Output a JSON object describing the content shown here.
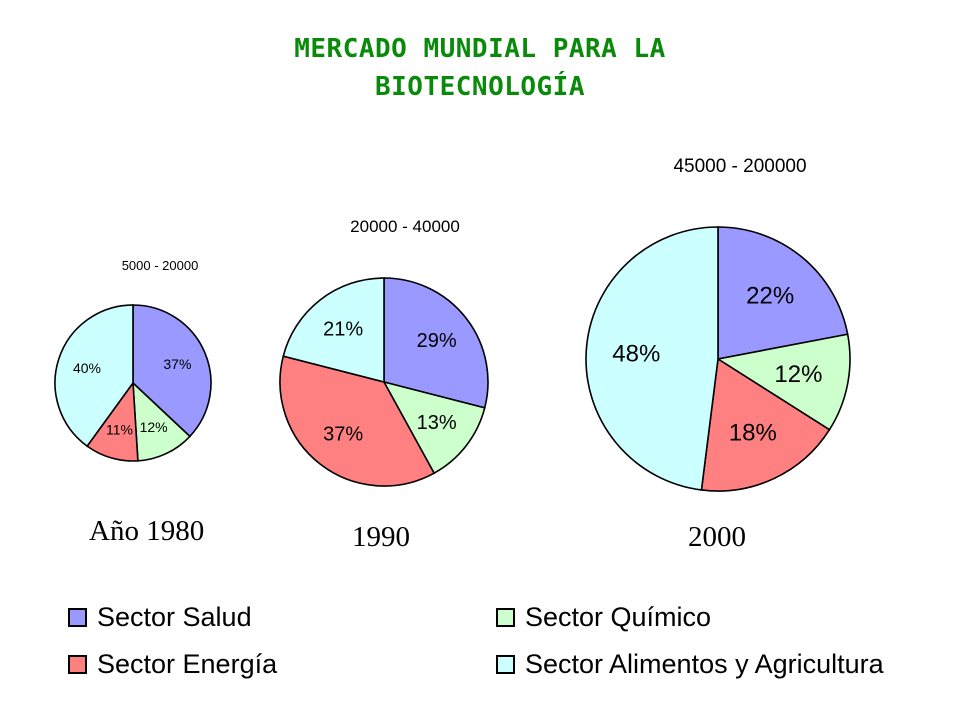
{
  "title": {
    "line1": "MERCADO MUNDIAL PARA LA",
    "line2": "BIOTECNOLOGÍA"
  },
  "colors": {
    "salud": "#9999ff",
    "quimico": "#ccffcc",
    "energia": "#ff8080",
    "alimentos": "#ccffff"
  },
  "chart_data": [
    {
      "type": "pie",
      "title": "5000 - 20000",
      "year_label": "Año 1980",
      "slices": [
        {
          "sector": "Sector Salud",
          "value": 37,
          "label": "37%"
        },
        {
          "sector": "Sector Químico",
          "value": 12,
          "label": "12%"
        },
        {
          "sector": "Sector Energía",
          "value": 11,
          "label": "11%"
        },
        {
          "sector": "Sector Alimentos y Agricultura",
          "value": 40,
          "label": "40%"
        }
      ]
    },
    {
      "type": "pie",
      "title": "20000 - 40000",
      "year_label": "1990",
      "slices": [
        {
          "sector": "Sector Salud",
          "value": 29,
          "label": "29%"
        },
        {
          "sector": "Sector Químico",
          "value": 13,
          "label": "13%"
        },
        {
          "sector": "Sector Energía",
          "value": 37,
          "label": "37%"
        },
        {
          "sector": "Sector Alimentos y Agricultura",
          "value": 21,
          "label": "21%"
        }
      ]
    },
    {
      "type": "pie",
      "title": "45000 - 200000",
      "year_label": "2000",
      "slices": [
        {
          "sector": "Sector Salud",
          "value": 22,
          "label": "22%"
        },
        {
          "sector": "Sector Químico",
          "value": 12,
          "label": "12%"
        },
        {
          "sector": "Sector Energía",
          "value": 18,
          "label": "18%"
        },
        {
          "sector": "Sector Alimentos y Agricultura",
          "value": 48,
          "label": "48%"
        }
      ]
    }
  ],
  "legend": {
    "placement": "bottom",
    "items": [
      {
        "label": "Sector Salud",
        "color_key": "salud"
      },
      {
        "label": "Sector Químico",
        "color_key": "quimico"
      },
      {
        "label": "Sector Energía",
        "color_key": "energia"
      },
      {
        "label": "Sector Alimentos y Agricultura",
        "color_key": "alimentos"
      }
    ]
  }
}
